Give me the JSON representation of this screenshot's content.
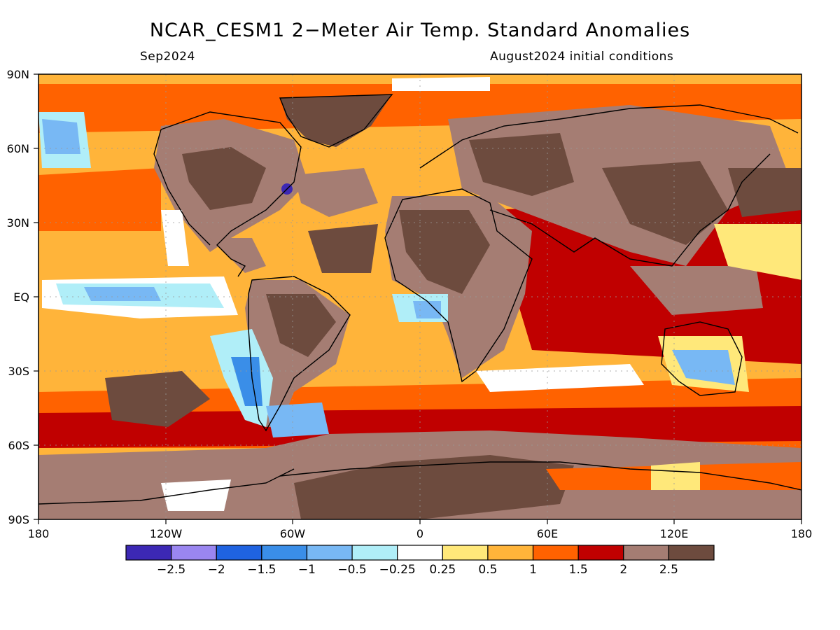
{
  "title": "NCAR_CESM1 2−Meter Air Temp. Standard Anomalies",
  "valid_month": "Sep2024",
  "init": "August2024 initial conditions",
  "lat_labels": [
    "90N",
    "60N",
    "30N",
    "EQ",
    "30S",
    "60S",
    "90S"
  ],
  "lon_labels": [
    "180",
    "120W",
    "60W",
    "0",
    "60E",
    "120E",
    "180"
  ],
  "colorbar": {
    "colors": [
      "#3c28b4",
      "#9a86f0",
      "#1f63e0",
      "#3a8ee8",
      "#78b8f4",
      "#b0eef8",
      "#ffffff",
      "#ffe87a",
      "#ffb43a",
      "#ff6200",
      "#c00000",
      "#a57d73",
      "#6d4b3e"
    ],
    "labels": [
      "−2.5",
      "−2",
      "−1.5",
      "−1",
      "−0.5",
      "−0.25",
      "0.25",
      "0.5",
      "1",
      "1.5",
      "2",
      "2.5"
    ]
  }
}
